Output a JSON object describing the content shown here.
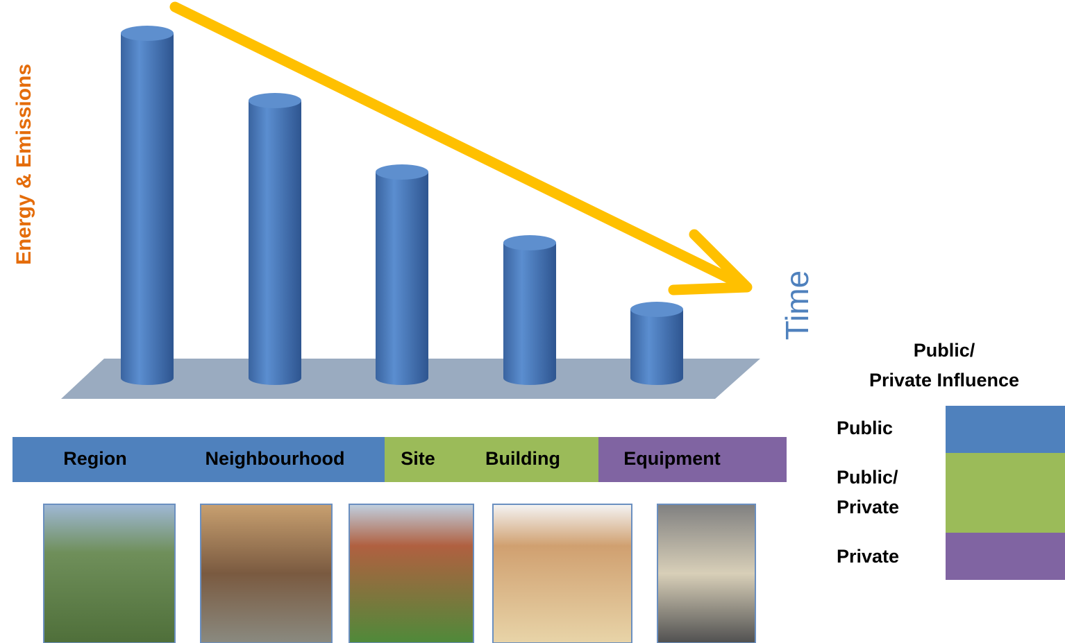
{
  "y_label": "Energy & Emissions",
  "x_label": "Time",
  "scale_band": [
    "Region",
    "Neighbourhood",
    "Site",
    "Building",
    "Equipment"
  ],
  "influence": {
    "title": [
      "Public/",
      "Private Influence"
    ],
    "items": [
      {
        "label": [
          "Public"
        ]
      },
      {
        "label": [
          "Public/",
          "Private"
        ]
      },
      {
        "label": [
          "Private"
        ]
      }
    ]
  }
}
